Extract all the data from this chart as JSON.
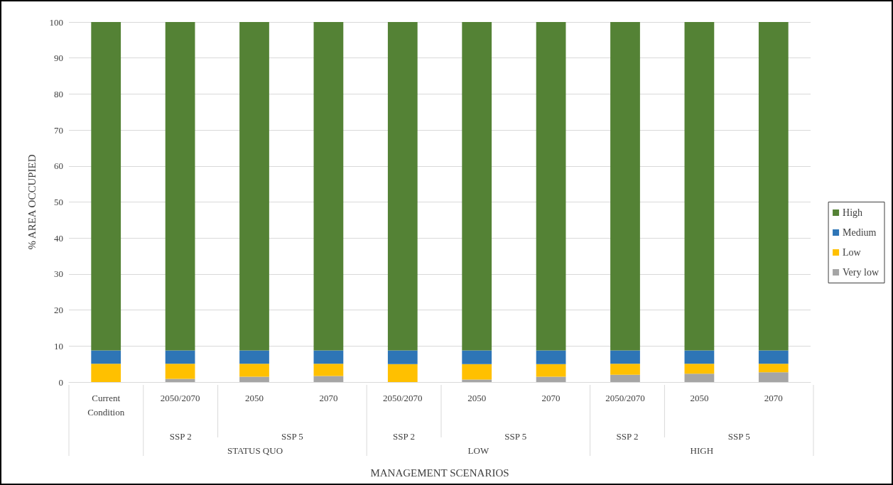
{
  "chart_data": {
    "type": "bar",
    "stacked": true,
    "ylabel": "% AREA OCCUPIED",
    "xlabel": "MANAGEMENT SCENARIOS",
    "categories": [
      "Current\nCondition",
      "2050/2070",
      "2050",
      "2070",
      "2050/2070",
      "2050",
      "2070",
      "2050/2070",
      "2050",
      "2070"
    ],
    "series": [
      {
        "name": "Very low",
        "color": "#a5a5a5",
        "values": [
          0,
          0.9,
          1.5,
          1.7,
          0,
          0.7,
          1.5,
          2.0,
          2.3,
          2.7
        ]
      },
      {
        "name": "Low",
        "color": "#ffc000",
        "values": [
          5.1,
          4.2,
          3.6,
          3.4,
          5.0,
          4.3,
          3.5,
          3.1,
          2.8,
          2.4
        ]
      },
      {
        "name": "Medium",
        "color": "#2e75b6",
        "values": [
          3.7,
          3.7,
          3.7,
          3.7,
          3.8,
          3.8,
          3.8,
          3.7,
          3.7,
          3.7
        ]
      },
      {
        "name": "High",
        "color": "#548235",
        "values": [
          91.2,
          91.2,
          91.2,
          91.2,
          91.2,
          91.2,
          91.2,
          91.2,
          91.2,
          91.2
        ]
      }
    ],
    "ylim": [
      0,
      100
    ],
    "yticks": [
      0,
      10,
      20,
      30,
      40,
      50,
      60,
      70,
      80,
      90,
      100
    ],
    "grid": "y",
    "legend": "right",
    "annotations": [
      "SSP 2",
      "SSP 5",
      "SSP 2",
      "SSP 5",
      "SSP 2",
      "SSP 5",
      "STATUS QUO",
      "LOW",
      "HIGH"
    ]
  }
}
